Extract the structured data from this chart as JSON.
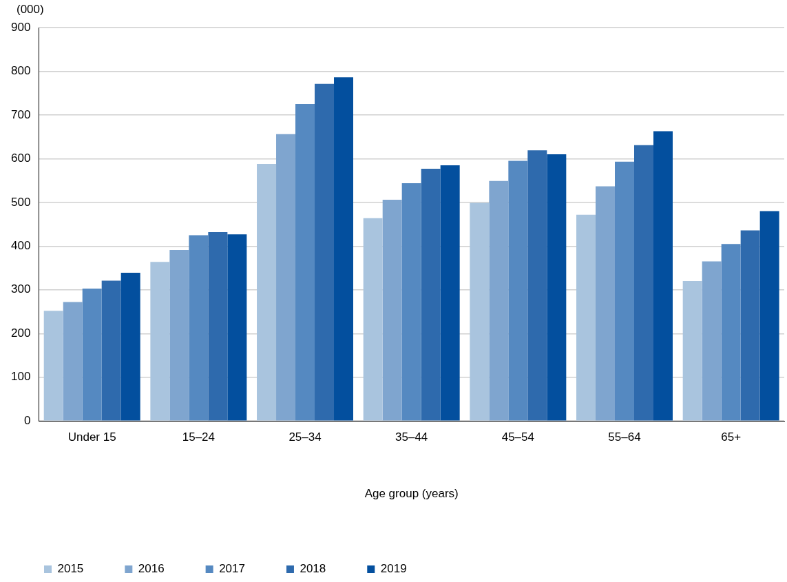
{
  "chart_data": {
    "type": "bar",
    "ylabel": "(000)",
    "xlabel": "Age group (years)",
    "categories": [
      "Under 15",
      "15–24",
      "25–34",
      "35–44",
      "45–54",
      "55–64",
      "65+"
    ],
    "series": [
      {
        "name": "2015",
        "color": "#a9c4de",
        "values": [
          252,
          364,
          588,
          464,
          499,
          472,
          320
        ]
      },
      {
        "name": "2016",
        "color": "#7fa5cf",
        "values": [
          272,
          391,
          656,
          506,
          549,
          537,
          365
        ]
      },
      {
        "name": "2017",
        "color": "#5589c1",
        "values": [
          303,
          425,
          725,
          544,
          595,
          593,
          405
        ]
      },
      {
        "name": "2018",
        "color": "#2e6aad",
        "values": [
          321,
          432,
          771,
          577,
          619,
          631,
          436
        ]
      },
      {
        "name": "2019",
        "color": "#034f9e",
        "values": [
          339,
          427,
          786,
          585,
          610,
          663,
          480
        ]
      }
    ],
    "ylim": [
      0,
      900
    ],
    "yticks": [
      0,
      100,
      200,
      300,
      400,
      500,
      600,
      700,
      800,
      900
    ],
    "grid": "y",
    "legend": "bottom left"
  }
}
